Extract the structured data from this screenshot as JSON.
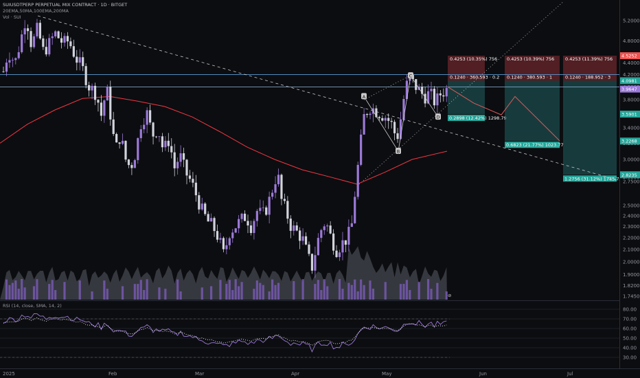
{
  "header": {
    "symbol": "SUIUSDTPERP PERPETUAL MIX CONTRACT · 1D · BITGET",
    "indicators": "20EMA,50MA,100EMA,200MA",
    "volume": "Vol · SUI"
  },
  "rsi_label": "RSI (14, close, SMA, 14, 2)",
  "colors": {
    "up": "#9c7ad8",
    "down": "#d1d4dc",
    "ma": "#f23645",
    "vol_up": "#7b5bb8",
    "vol_down": "#8a8d95",
    "target": "#26a69a",
    "stop": "#ef5350",
    "rsi_line": "#9c7ad8"
  },
  "chart_data": {
    "type": "candlestick",
    "y_axis": {
      "ticks": [
        "5.6000",
        "5.2000",
        "4.8000",
        "4.4000",
        "4.2000",
        "4.0000",
        "3.8000",
        "3.6000",
        "3.4000",
        "3.2000",
        "3.0000",
        "2.8000",
        "2.7500",
        "2.5000",
        "2.4000",
        "2.3000",
        "2.2000",
        "2.1000",
        "2.0000",
        "1.9000",
        "1.8200",
        "1.7450"
      ],
      "scale": "log"
    },
    "x_axis": {
      "ticks": [
        "2025",
        "Feb",
        "Mar",
        "Apr",
        "May",
        "Jun",
        "Jul"
      ]
    },
    "rsi_axis": {
      "ticks": [
        "80.00",
        "70.00",
        "60.00",
        "50.00",
        "40.00",
        "30.00"
      ],
      "ylim": [
        25,
        82
      ]
    },
    "price_tags": [
      {
        "label": "4.5252",
        "color": "#ef5350",
        "value": 4.5252
      },
      {
        "label": "4.0981",
        "color": "#26a69a",
        "value": 4.0981
      },
      {
        "label": "3.9647",
        "color": "#9c7ad8",
        "value": 3.9647
      },
      {
        "label": "3.5901",
        "color": "#26a69a",
        "value": 3.5901
      },
      {
        "label": "3.2268",
        "color": "#26a69a",
        "value": 3.2268
      },
      {
        "label": "2.8235",
        "color": "#26a69a",
        "value": 2.8235
      }
    ],
    "pattern_labels": [
      "X",
      "A",
      "B",
      "C",
      "D"
    ],
    "positions": [
      {
        "stop": "0.4253 (10.35%) 756",
        "entry": "0.1240 · 360.593 · 0.2",
        "target": "0.2898 (12.42%) 1298.79"
      },
      {
        "stop": "0.4253 (10.39%) 756",
        "entry": "0.1240 · 380.593 · 1",
        "target": "0.6823 (21.77%) 1023.77"
      },
      {
        "stop": "0.4253 (11.39%) 756",
        "entry": "0.1240 · 188.952 · 3",
        "target": "1.2756 (31.12%) 1745.77"
      }
    ],
    "tv_logo": "⊘"
  }
}
